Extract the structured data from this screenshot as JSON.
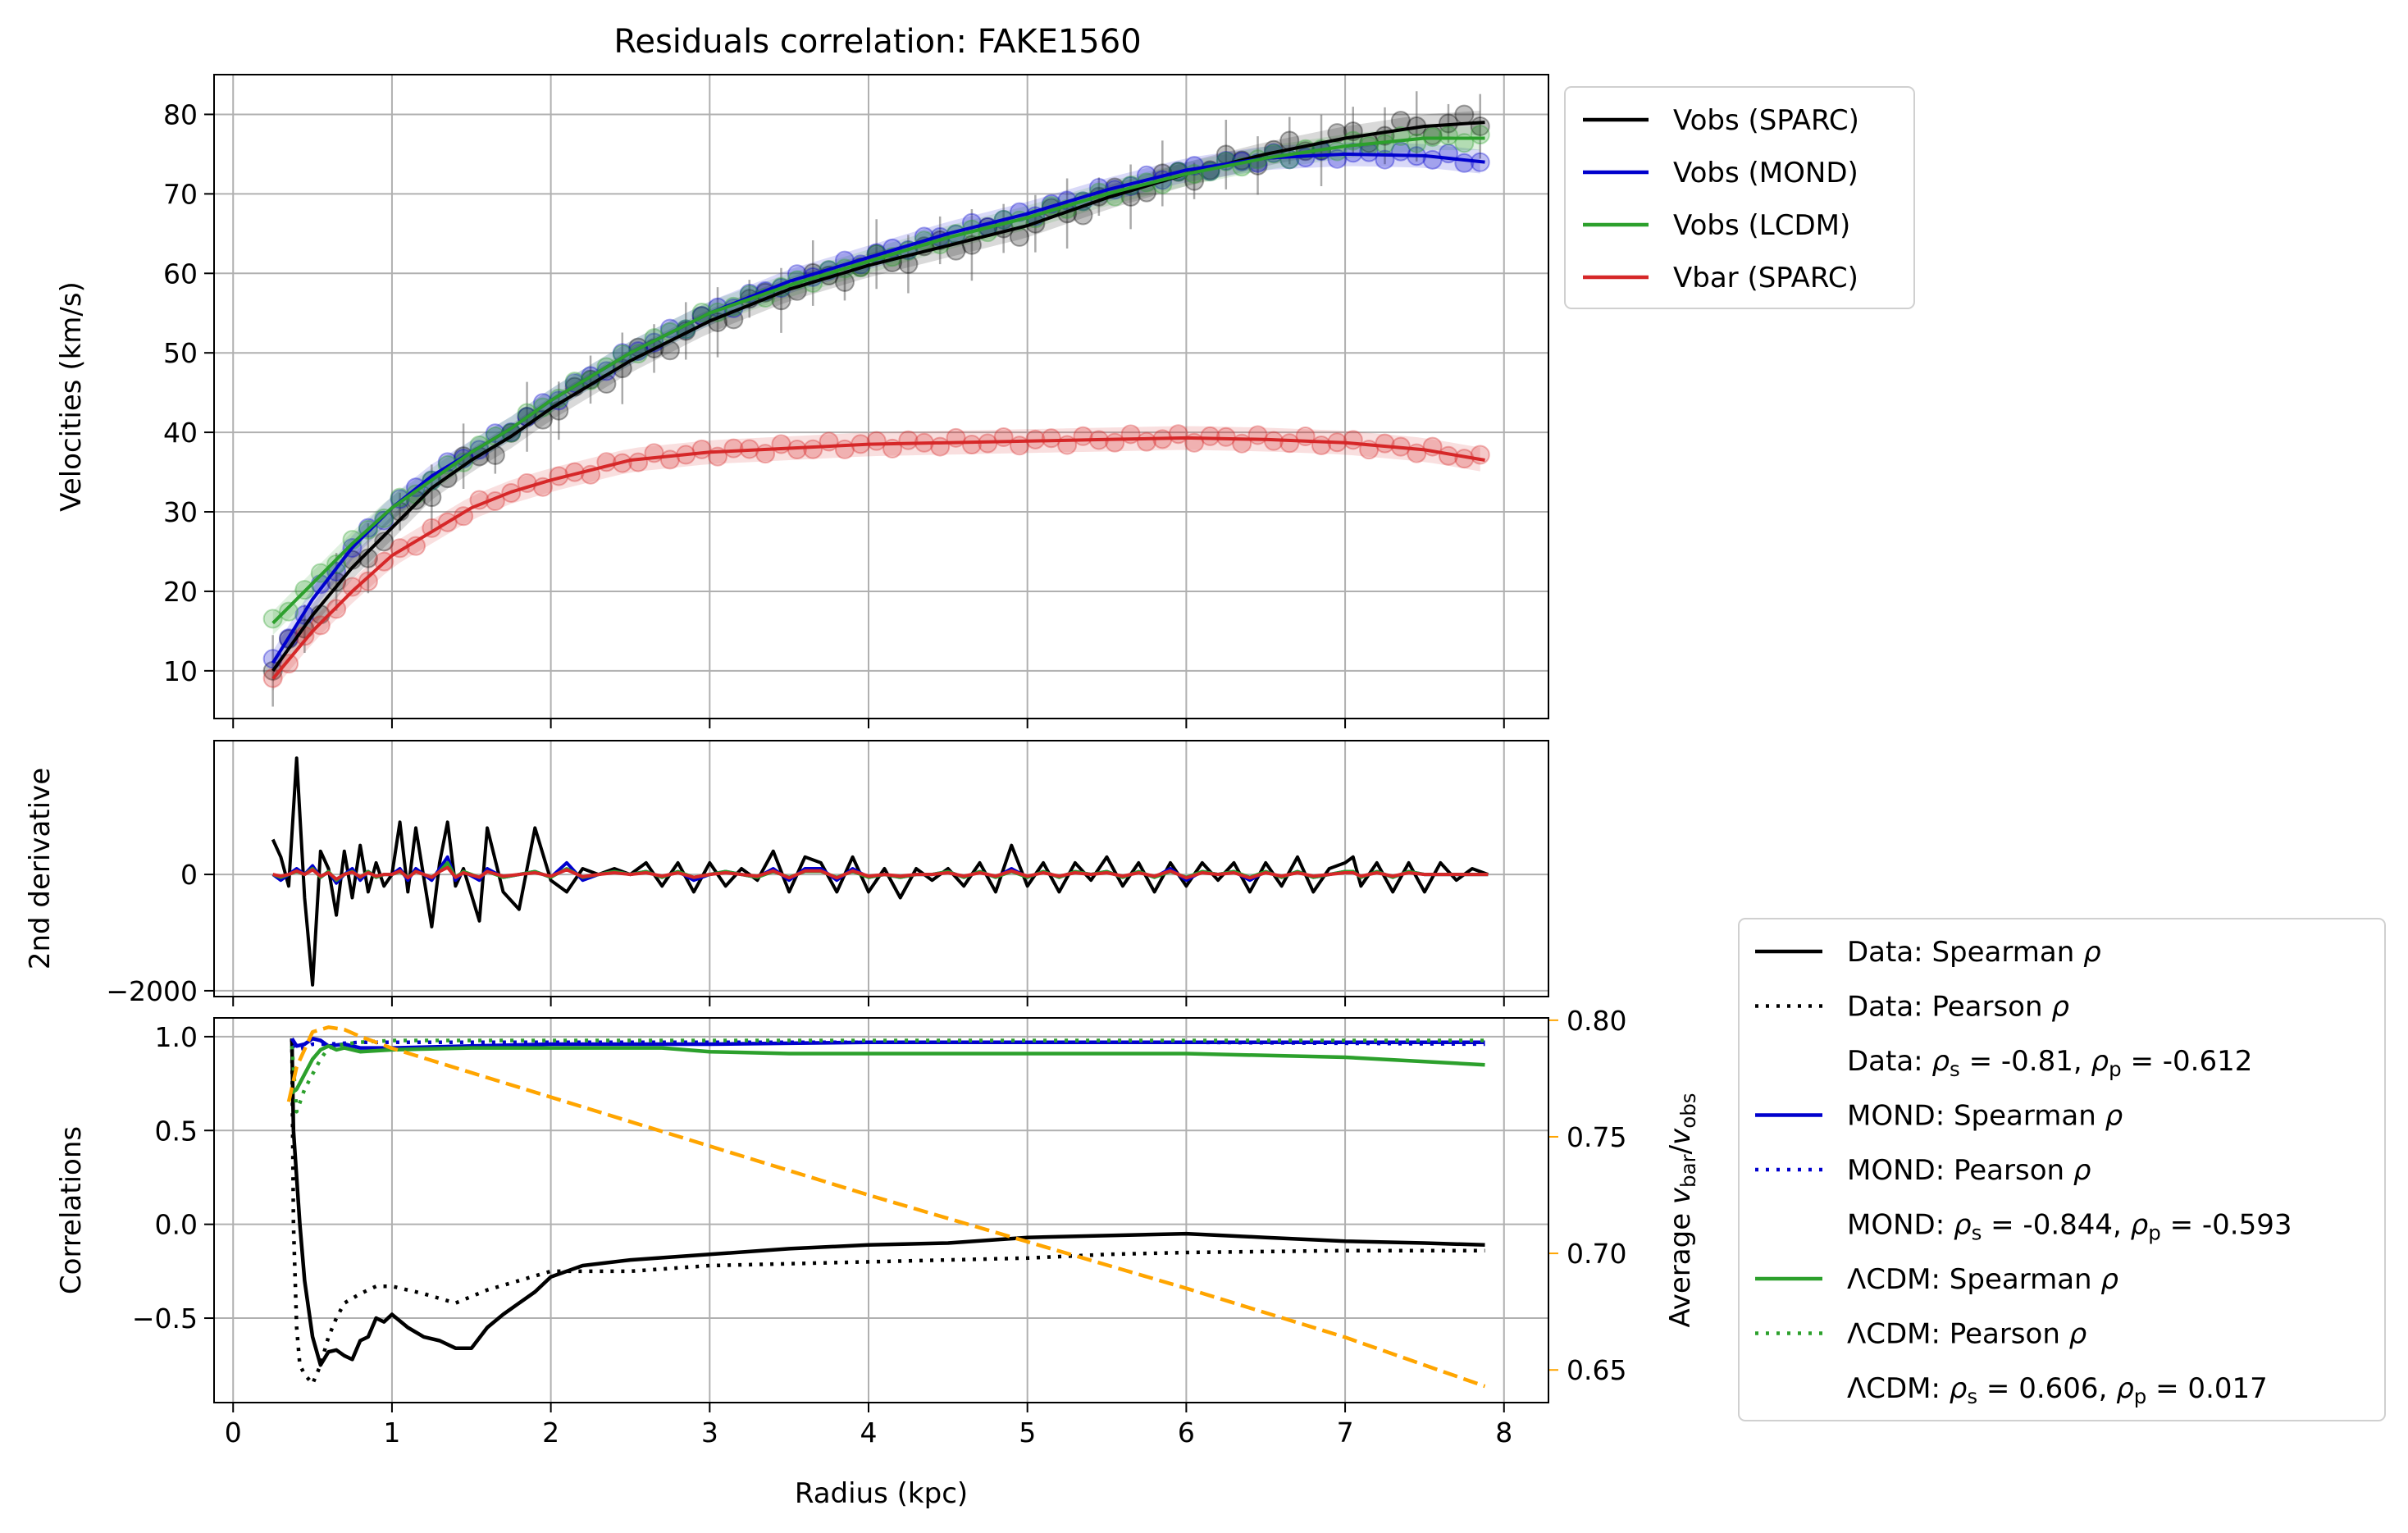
{
  "title": "Residuals correlation: FAKE1560",
  "colors": {
    "sparc": "#000000",
    "mond": "#0000cd",
    "lcdm": "#2ca02c",
    "bar": "#d62728",
    "ratio": "#ffa500",
    "grid": "#b0b0b0"
  },
  "chart_data": [
    {
      "id": "velocities",
      "type": "line",
      "ylabel": "Velocities (km/s)",
      "xlim": [
        -0.12,
        8.28
      ],
      "ylim": [
        4,
        85
      ],
      "xticks": [
        0,
        1,
        2,
        3,
        4,
        5,
        6,
        7,
        8
      ],
      "yticks": [
        10,
        20,
        30,
        40,
        50,
        60,
        70,
        80
      ],
      "grid": true,
      "legend": {
        "placement": "outside upper right",
        "entries": [
          "Vobs (SPARC)",
          "Vobs (MOND)",
          "Vobs (LCDM)",
          "Vbar (SPARC)"
        ]
      },
      "x": [
        0.25,
        0.5,
        0.75,
        1.0,
        1.25,
        1.5,
        1.75,
        2.0,
        2.5,
        3.0,
        3.5,
        4.0,
        4.5,
        5.0,
        5.5,
        6.0,
        6.5,
        7.0,
        7.5,
        7.88
      ],
      "series": [
        {
          "name": "Vobs (SPARC)",
          "values": [
            10,
            17,
            23,
            28,
            33,
            36.5,
            39.5,
            43,
            49,
            54,
            58,
            61,
            63.5,
            66,
            69.5,
            72.5,
            75,
            77,
            78.5,
            79
          ]
        },
        {
          "name": "Vobs (MOND)",
          "values": [
            11,
            19,
            25.5,
            30.5,
            34.5,
            37.5,
            40.5,
            44,
            50,
            55,
            59,
            62,
            65,
            67.5,
            70.5,
            73,
            74.5,
            75,
            74.8,
            74
          ]
        },
        {
          "name": "Vobs (LCDM)",
          "values": [
            16,
            21,
            26,
            30.5,
            34,
            37.5,
            40.5,
            44,
            50,
            55,
            58.5,
            61.5,
            64.5,
            67,
            70,
            72.5,
            74.5,
            76,
            77,
            77
          ]
        },
        {
          "name": "Vbar (SPARC)",
          "values": [
            9,
            15,
            20,
            24.5,
            27.5,
            30.5,
            32.5,
            34,
            36.5,
            37.5,
            38,
            38.5,
            38.7,
            38.9,
            39.1,
            39.3,
            39.1,
            38.7,
            37.8,
            36.5
          ]
        }
      ]
    },
    {
      "id": "second-derivative",
      "type": "line",
      "ylabel": "2nd derivative",
      "xlim": [
        -0.12,
        8.28
      ],
      "ylim": [
        -2100,
        2300
      ],
      "yticks": [
        0,
        -2000
      ],
      "grid": true,
      "x": [
        0.25,
        0.3,
        0.35,
        0.4,
        0.45,
        0.5,
        0.55,
        0.6,
        0.65,
        0.7,
        0.75,
        0.8,
        0.85,
        0.9,
        0.95,
        1.0,
        1.05,
        1.1,
        1.15,
        1.25,
        1.3,
        1.35,
        1.4,
        1.45,
        1.55,
        1.6,
        1.7,
        1.8,
        1.9,
        2.0,
        2.1,
        2.2,
        2.3,
        2.4,
        2.5,
        2.6,
        2.7,
        2.8,
        2.9,
        3.0,
        3.1,
        3.2,
        3.3,
        3.4,
        3.5,
        3.6,
        3.7,
        3.8,
        3.9,
        4.0,
        4.1,
        4.2,
        4.3,
        4.4,
        4.5,
        4.6,
        4.7,
        4.8,
        4.9,
        5.0,
        5.1,
        5.2,
        5.3,
        5.4,
        5.5,
        5.6,
        5.7,
        5.8,
        5.9,
        6.0,
        6.1,
        6.2,
        6.3,
        6.4,
        6.5,
        6.6,
        6.7,
        6.8,
        6.9,
        7.0,
        7.05,
        7.1,
        7.2,
        7.3,
        7.4,
        7.5,
        7.6,
        7.7,
        7.8,
        7.9
      ],
      "series": [
        {
          "name": "Data",
          "values": [
            600,
            300,
            -200,
            2000,
            -400,
            -1900,
            400,
            100,
            -700,
            400,
            -400,
            500,
            -300,
            200,
            -200,
            0,
            900,
            -300,
            800,
            -900,
            200,
            900,
            -200,
            100,
            -800,
            800,
            -300,
            -600,
            800,
            -100,
            -300,
            100,
            0,
            100,
            0,
            200,
            -200,
            200,
            -300,
            200,
            -200,
            100,
            -100,
            400,
            -300,
            300,
            200,
            -300,
            300,
            -300,
            100,
            -400,
            100,
            -100,
            100,
            -200,
            200,
            -300,
            500,
            -200,
            200,
            -300,
            200,
            -100,
            300,
            -200,
            200,
            -300,
            200,
            -200,
            200,
            -100,
            200,
            -300,
            200,
            -200,
            300,
            -300,
            100,
            200,
            300,
            -200,
            200,
            -300,
            200,
            -300,
            200,
            -100,
            100,
            0
          ]
        },
        {
          "name": "MOND",
          "values": [
            0,
            -100,
            0,
            100,
            0,
            150,
            -50,
            50,
            -150,
            0,
            100,
            -100,
            50,
            -50,
            0,
            0,
            100,
            -100,
            100,
            -100,
            100,
            300,
            -100,
            50,
            -100,
            100,
            -50,
            0,
            50,
            -50,
            200,
            -100,
            0,
            50,
            0,
            50,
            -50,
            50,
            -100,
            0,
            50,
            0,
            -50,
            100,
            -100,
            100,
            100,
            -100,
            100,
            -50,
            0,
            -50,
            0,
            0,
            50,
            -50,
            50,
            -50,
            100,
            -50,
            50,
            -50,
            50,
            0,
            50,
            -50,
            50,
            -50,
            100,
            -100,
            50,
            0,
            50,
            -100,
            50,
            -50,
            50,
            -50,
            0,
            50,
            50,
            -50,
            50,
            -50,
            50,
            0,
            0,
            0,
            0,
            0
          ]
        },
        {
          "name": "LCDM",
          "values": [
            0,
            -50,
            0,
            50,
            0,
            100,
            -50,
            50,
            -100,
            0,
            50,
            -50,
            50,
            -50,
            0,
            0,
            50,
            -50,
            50,
            -50,
            50,
            200,
            -50,
            50,
            -50,
            50,
            -50,
            0,
            50,
            -50,
            100,
            -50,
            0,
            50,
            0,
            50,
            -50,
            50,
            -50,
            0,
            50,
            0,
            -50,
            50,
            -50,
            50,
            50,
            -50,
            50,
            -50,
            0,
            -50,
            0,
            0,
            50,
            -50,
            50,
            -50,
            50,
            -50,
            50,
            -50,
            50,
            0,
            50,
            -50,
            50,
            -50,
            50,
            -50,
            50,
            0,
            50,
            -50,
            50,
            -50,
            50,
            -50,
            0,
            50,
            50,
            -50,
            50,
            -50,
            50,
            0,
            0,
            0,
            0,
            0
          ]
        },
        {
          "name": "Vbar",
          "values": [
            0,
            -30,
            0,
            60,
            0,
            80,
            -30,
            30,
            -80,
            0,
            40,
            -40,
            30,
            -30,
            0,
            0,
            60,
            -60,
            50,
            -50,
            50,
            120,
            -50,
            30,
            -50,
            50,
            -30,
            0,
            30,
            -30,
            80,
            -40,
            0,
            30,
            0,
            30,
            -30,
            30,
            -50,
            0,
            30,
            0,
            -30,
            60,
            -60,
            60,
            60,
            -60,
            60,
            -30,
            0,
            -30,
            0,
            0,
            30,
            -30,
            30,
            -30,
            60,
            -30,
            30,
            -30,
            30,
            0,
            30,
            -30,
            30,
            -30,
            60,
            -60,
            30,
            0,
            30,
            -60,
            30,
            -30,
            30,
            -30,
            0,
            30,
            30,
            -30,
            30,
            -30,
            30,
            0,
            0,
            0,
            0,
            0
          ]
        }
      ]
    },
    {
      "id": "correlations",
      "type": "line",
      "xlabel": "Radius (kpc)",
      "ylabel": "Correlations",
      "y2label_parts": [
        "Average ",
        "v",
        "bar",
        "/",
        "v",
        "obs"
      ],
      "xlim": [
        -0.12,
        8.28
      ],
      "ylim": [
        -0.95,
        1.1
      ],
      "y2lim": [
        0.636,
        0.801
      ],
      "xticks": [
        0,
        1,
        2,
        3,
        4,
        5,
        6,
        7,
        8
      ],
      "yticks": [
        1.0,
        0.5,
        -0.5
      ],
      "yticks_text": [
        "1.0",
        "0.5",
        "0.0",
        "−0.5"
      ],
      "y2ticks": [
        0.8,
        0.75,
        0.7,
        0.65
      ],
      "y2ticks_text": [
        "0.80",
        "0.75",
        "0.70",
        "0.65"
      ],
      "grid": true,
      "legend": {
        "placement": "outside lower right"
      },
      "series": [
        {
          "name": "Data: Spearman ρ",
          "x": [
            0.37,
            0.38,
            0.4,
            0.42,
            0.45,
            0.5,
            0.55,
            0.6,
            0.65,
            0.7,
            0.75,
            0.8,
            0.85,
            0.9,
            0.95,
            1.0,
            1.1,
            1.2,
            1.3,
            1.4,
            1.5,
            1.6,
            1.7,
            1.8,
            1.9,
            2.0,
            2.2,
            2.5,
            3.0,
            3.5,
            4.0,
            4.5,
            5.0,
            5.5,
            6.0,
            6.5,
            7.0,
            7.5,
            7.88
          ],
          "values": [
            0.99,
            0.5,
            0.25,
            0.0,
            -0.3,
            -0.6,
            -0.75,
            -0.68,
            -0.67,
            -0.7,
            -0.72,
            -0.62,
            -0.6,
            -0.5,
            -0.52,
            -0.48,
            -0.55,
            -0.6,
            -0.62,
            -0.66,
            -0.66,
            -0.55,
            -0.48,
            -0.42,
            -0.36,
            -0.28,
            -0.22,
            -0.19,
            -0.16,
            -0.13,
            -0.11,
            -0.1,
            -0.07,
            -0.06,
            -0.05,
            -0.07,
            -0.09,
            -0.1,
            -0.11
          ]
        },
        {
          "name": "Data: Pearson ρ",
          "x": [
            0.37,
            0.38,
            0.4,
            0.42,
            0.45,
            0.5,
            0.55,
            0.6,
            0.65,
            0.7,
            0.8,
            0.9,
            1.0,
            1.2,
            1.4,
            1.6,
            1.8,
            2.0,
            2.5,
            3.0,
            4.0,
            5.0,
            5.5,
            6.0,
            7.0,
            7.88
          ],
          "values": [
            0.99,
            0.0,
            -0.55,
            -0.75,
            -0.8,
            -0.85,
            -0.75,
            -0.6,
            -0.5,
            -0.42,
            -0.37,
            -0.33,
            -0.33,
            -0.37,
            -0.42,
            -0.35,
            -0.3,
            -0.25,
            -0.25,
            -0.22,
            -0.2,
            -0.18,
            -0.16,
            -0.15,
            -0.14,
            -0.14
          ]
        },
        {
          "name": "MOND: Spearman ρ",
          "x": [
            0.37,
            0.4,
            0.45,
            0.5,
            0.55,
            0.6,
            0.7,
            0.8,
            1.0,
            1.5,
            2.0,
            3.0,
            4.0,
            5.0,
            6.0,
            7.0,
            7.88
          ],
          "values": [
            0.99,
            0.95,
            0.96,
            0.99,
            0.98,
            0.95,
            0.96,
            0.94,
            0.94,
            0.95,
            0.96,
            0.96,
            0.97,
            0.97,
            0.97,
            0.97,
            0.97
          ]
        },
        {
          "name": "MOND: Pearson ρ",
          "x": [
            0.37,
            0.4,
            0.45,
            0.5,
            0.6,
            0.8,
            1.0,
            2.0,
            4.0,
            6.0,
            7.88
          ],
          "values": [
            0.95,
            0.93,
            0.94,
            0.96,
            0.96,
            0.97,
            0.97,
            0.97,
            0.97,
            0.97,
            0.96
          ]
        },
        {
          "name": "ΛCDM: Spearman ρ",
          "x": [
            0.37,
            0.4,
            0.45,
            0.5,
            0.55,
            0.6,
            0.65,
            0.7,
            0.8,
            1.0,
            1.5,
            2.0,
            2.7,
            3.0,
            3.5,
            4.0,
            5.0,
            6.0,
            7.0,
            7.88
          ],
          "values": [
            0.7,
            0.72,
            0.8,
            0.88,
            0.93,
            0.95,
            0.93,
            0.94,
            0.92,
            0.93,
            0.94,
            0.94,
            0.94,
            0.92,
            0.91,
            0.91,
            0.91,
            0.91,
            0.89,
            0.85
          ]
        },
        {
          "name": "ΛCDM: Pearson ρ",
          "x": [
            0.37,
            0.4,
            0.45,
            0.5,
            0.55,
            0.6,
            0.7,
            0.8,
            1.0,
            1.5,
            2.0,
            3.0,
            4.0,
            5.0,
            6.0,
            7.0,
            7.88
          ],
          "values": [
            0.95,
            0.6,
            0.72,
            0.8,
            0.88,
            0.94,
            0.96,
            0.97,
            0.98,
            0.98,
            0.98,
            0.98,
            0.98,
            0.98,
            0.98,
            0.98,
            0.98
          ]
        },
        {
          "name": "Average vbar/vobs",
          "axis": "right",
          "x": [
            0.35,
            0.4,
            0.5,
            0.6,
            0.7,
            0.8,
            1.0,
            2.0,
            3.0,
            4.0,
            5.0,
            6.0,
            7.0,
            7.88
          ],
          "values": [
            0.765,
            0.78,
            0.795,
            0.797,
            0.796,
            0.793,
            0.788,
            0.767,
            0.746,
            0.725,
            0.705,
            0.685,
            0.664,
            0.643
          ]
        }
      ]
    }
  ],
  "corr_legend": [
    {
      "label": "Data: Spearman ρ",
      "line": "solid",
      "color": "#000000"
    },
    {
      "label": "Data: Pearson ρ",
      "line": "dotted",
      "color": "#000000"
    },
    {
      "label": "Data: ρs = -0.81, ρp = -0.612",
      "parts": [
        "Data: ",
        "ρ",
        "s",
        " = -0.81, ",
        "ρ",
        "p",
        " = -0.612"
      ],
      "line": "none"
    },
    {
      "label": "MOND: Spearman ρ",
      "line": "solid",
      "color": "#0000cd"
    },
    {
      "label": "MOND: Pearson ρ",
      "line": "dotted",
      "color": "#0000cd"
    },
    {
      "label": "MOND: ρs = -0.844, ρp = -0.593",
      "parts": [
        "MOND: ",
        "ρ",
        "s",
        " = -0.844, ",
        "ρ",
        "p",
        " = -0.593"
      ],
      "line": "none"
    },
    {
      "label": "ΛCDM: Spearman ρ",
      "line": "solid",
      "color": "#2ca02c"
    },
    {
      "label": "ΛCDM: Pearson ρ",
      "line": "dotted",
      "color": "#2ca02c"
    },
    {
      "label": "ΛCDM: ρs = 0.606, ρp = 0.017",
      "parts": [
        "ΛCDM: ",
        "ρ",
        "s",
        " = 0.606, ",
        "ρ",
        "p",
        " = 0.017"
      ],
      "line": "none"
    }
  ]
}
